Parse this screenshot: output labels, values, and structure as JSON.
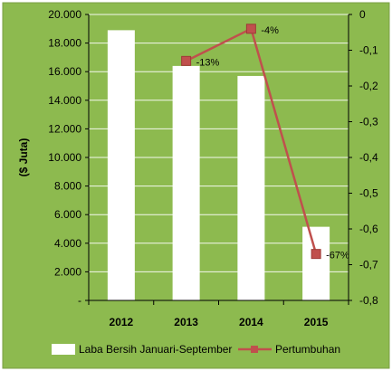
{
  "chart_data": {
    "type": "bar",
    "categories": [
      "2012",
      "2013",
      "2014",
      "2015"
    ],
    "ylabel": "($ Juta)",
    "ylim": [
      0,
      20000
    ],
    "y_ticks": [
      "-",
      "2.000",
      "4.000",
      "6.000",
      "8.000",
      "10.000",
      "12.000",
      "14.000",
      "16.000",
      "18.000",
      "20.000"
    ],
    "y2lim": [
      -0.8,
      0
    ],
    "y2_ticks": [
      "-0,8",
      "-0,7",
      "-0,6",
      "-0,5",
      "-0,4",
      "-0,3",
      "-0,2",
      "-0,1",
      "0"
    ],
    "grid": true,
    "legend_position": "bottom",
    "series": [
      {
        "name": "Laba Bersih Januari-September",
        "type": "bar",
        "axis": "left",
        "values": [
          18900,
          16400,
          15700,
          5150
        ]
      },
      {
        "name": "Pertumbuhan",
        "type": "line",
        "axis": "right",
        "values": [
          null,
          -0.13,
          -0.04,
          -0.67
        ],
        "labels": [
          null,
          "-13%",
          "-4%",
          "-67%"
        ]
      }
    ],
    "colors": {
      "background": "#8dba4f",
      "bar": "#ffffff",
      "line": "#c0504d",
      "grid": "#ffffff",
      "text": "#000000"
    }
  }
}
